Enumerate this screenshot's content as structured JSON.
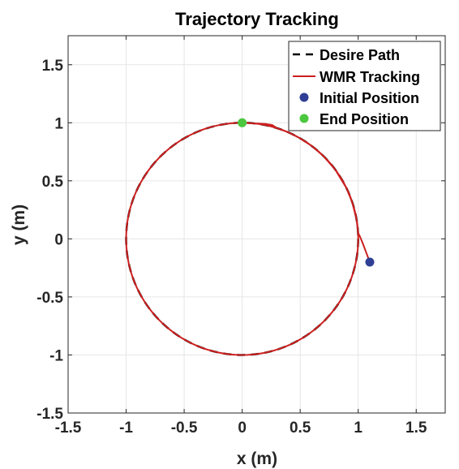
{
  "chart_data": {
    "type": "line",
    "title": "Trajectory Tracking",
    "xlabel": "x (m)",
    "ylabel": "y (m)",
    "xlim": [
      -1.5,
      1.75
    ],
    "ylim": [
      -1.5,
      1.75
    ],
    "xticks": [
      -1.5,
      -1,
      -0.5,
      0,
      0.5,
      1,
      1.5
    ],
    "yticks": [
      -1.5,
      -1,
      -0.5,
      0,
      0.5,
      1,
      1.5
    ],
    "xtick_labels": [
      "-1.5",
      "-1",
      "-0.5",
      "0",
      "0.5",
      "1",
      "1.5"
    ],
    "ytick_labels": [
      "-1.5",
      "-1",
      "-0.5",
      "0",
      "0.5",
      "1",
      "1.5"
    ],
    "grid": true,
    "legend_position": "top-right",
    "series": [
      {
        "name": "Desire Path",
        "style": "dashed",
        "color": "#000000",
        "shape": "circle",
        "center": [
          0,
          0
        ],
        "radius": 1
      },
      {
        "name": "WMR Tracking",
        "style": "solid",
        "color": "#cc1f1f",
        "x": [
          1.1,
          1.07,
          1.04,
          1.015,
          1.0,
          0.985,
          0.95,
          0.9,
          0.8,
          0.7,
          0.6,
          0.5,
          0.4,
          0.3,
          0.26,
          0.2,
          0.1,
          0.0
        ],
        "y": [
          -0.2,
          -0.12,
          -0.04,
          0.02,
          0.05,
          0.17,
          0.31,
          0.436,
          0.6,
          0.714,
          0.8,
          0.866,
          0.917,
          0.954,
          0.98,
          0.99,
          0.995,
          1.0
        ]
      },
      {
        "name": "Initial Position",
        "style": "marker",
        "color": "#2f3f95",
        "x": [
          1.1
        ],
        "y": [
          -0.2
        ]
      },
      {
        "name": "End Position",
        "style": "marker",
        "color": "#4cc73f",
        "x": [
          0
        ],
        "y": [
          1
        ]
      }
    ]
  }
}
